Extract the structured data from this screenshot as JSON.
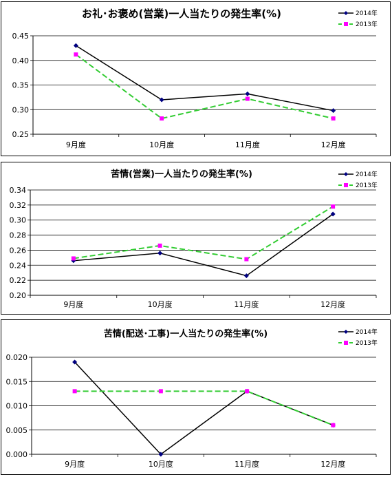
{
  "colors": {
    "s2014": "#000080",
    "s2014_line": "#000000",
    "s2013_line": "#33cc33",
    "s2013_marker": "#ff00ff"
  },
  "chart_data": [
    {
      "type": "line",
      "title": "お礼･お褒め(営業)一人当たりの発生率(%)",
      "categories": [
        "9月度",
        "10月度",
        "11月度",
        "12月度"
      ],
      "ylim": [
        0.25,
        0.45
      ],
      "yticks": [
        "0.25",
        "0.30",
        "0.35",
        "0.40",
        "0.45"
      ],
      "grid": true,
      "legend": "top-right",
      "series": [
        {
          "name": "2014年",
          "values": [
            0.43,
            0.32,
            0.332,
            0.298
          ]
        },
        {
          "name": "2013年",
          "values": [
            0.412,
            0.282,
            0.322,
            0.282
          ]
        }
      ]
    },
    {
      "type": "line",
      "title": "苦情(営業)一人当たりの発生率(%)",
      "categories": [
        "9月度",
        "10月度",
        "11月度",
        "12月度"
      ],
      "ylim": [
        0.2,
        0.34
      ],
      "yticks": [
        "0.20",
        "0.22",
        "0.24",
        "0.26",
        "0.28",
        "0.30",
        "0.32",
        "0.34"
      ],
      "grid": true,
      "legend": "top-right",
      "series": [
        {
          "name": "2014年",
          "values": [
            0.246,
            0.256,
            0.226,
            0.308
          ]
        },
        {
          "name": "2013年",
          "values": [
            0.249,
            0.266,
            0.248,
            0.318
          ]
        }
      ]
    },
    {
      "type": "line",
      "title": "苦情(配送･工事)一人当たりの発生率(%)",
      "categories": [
        "9月度",
        "10月度",
        "11月度",
        "12月度"
      ],
      "ylim": [
        0,
        0.02
      ],
      "yticks": [
        "0.000",
        "0.005",
        "0.010",
        "0.015",
        "0.020"
      ],
      "grid": true,
      "legend": "top-right",
      "series": [
        {
          "name": "2014年",
          "values": [
            0.019,
            0.0,
            0.013,
            0.006
          ]
        },
        {
          "name": "2013年",
          "values": [
            0.013,
            0.013,
            0.013,
            0.006
          ]
        }
      ]
    }
  ]
}
